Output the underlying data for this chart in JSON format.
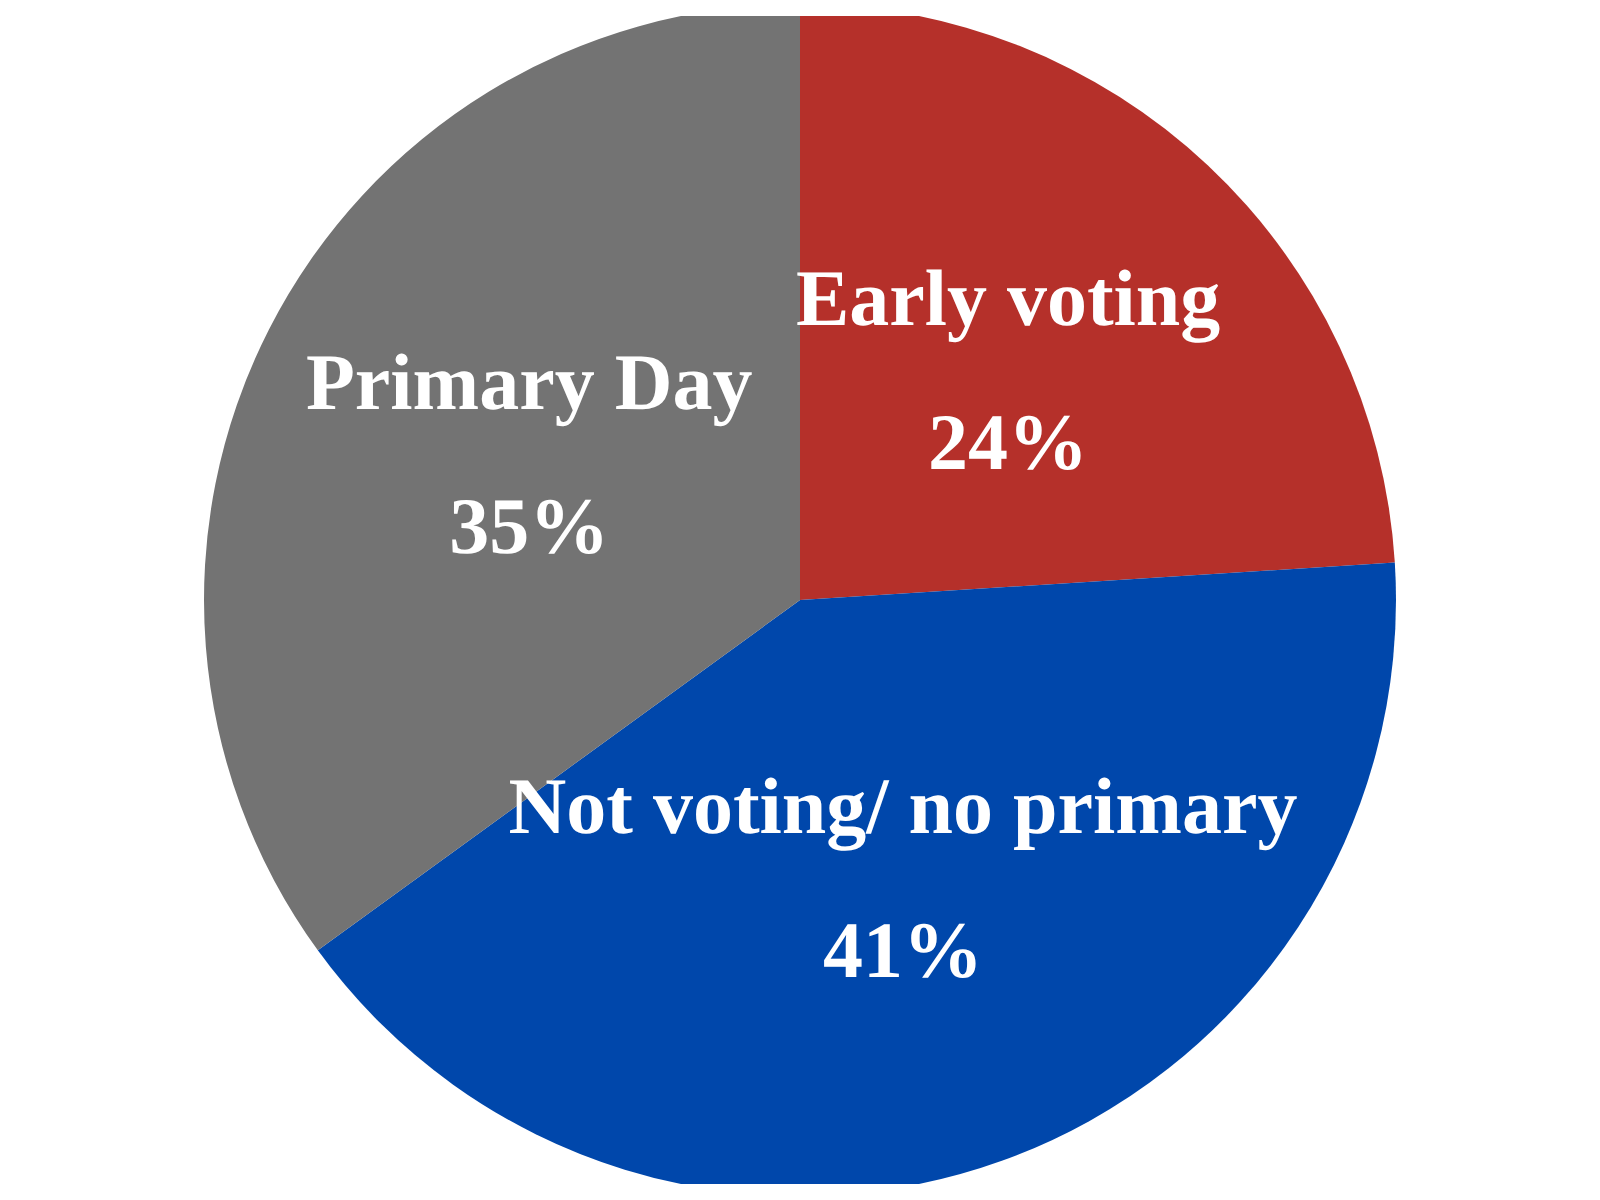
{
  "chart_data": {
    "type": "pie",
    "categories": [
      "Early voting",
      "Not voting/ no primary",
      "Primary Day"
    ],
    "values": [
      24,
      41,
      35
    ],
    "colors": [
      "#b5302a",
      "#0047ab",
      "#737373"
    ],
    "value_labels": [
      "24%",
      "41%",
      "35%"
    ],
    "legend": false
  }
}
